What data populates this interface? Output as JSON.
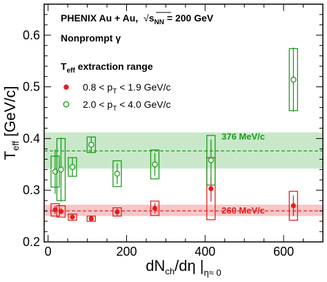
{
  "chart_data": {
    "type": "scatter",
    "xlabel": "dN",
    "xlabel_sub": "ch",
    "xlabel_mid": "/dη |",
    "xlabel_sub2": "η≈ 0",
    "ylabel": "T",
    "ylabel_sub": "eff",
    "ylabel_unit": " [GeV/c]",
    "xlim": [
      -10,
      700
    ],
    "ylim": [
      0.2,
      0.66
    ],
    "x_ticks": [
      0,
      200,
      400,
      600
    ],
    "y_ticks": [
      0.2,
      0.3,
      0.4,
      0.5,
      0.6
    ],
    "annotations": {
      "collab": "PHENIX Au + Au,",
      "energy_sqrt": "√",
      "energy_s": "s",
      "energy_sub": "NN",
      "energy_val": " = 200 GeV",
      "nonprompt": "Nonprompt γ",
      "range_title_T": "T",
      "range_title_sub": "eff",
      "range_title_rest": " extraction range"
    },
    "bands": [
      {
        "name": "376 MeV/c",
        "value": 0.376,
        "low": 0.342,
        "high": 0.412,
        "color": "#1a9c1a",
        "fill": "#c9e8c9"
      },
      {
        "name": "260 MeV/c",
        "value": 0.26,
        "low": 0.25,
        "high": 0.272,
        "color": "#e02020",
        "fill": "#f7c6c6"
      }
    ],
    "series": [
      {
        "name_pre": "0.8 < p",
        "name_sub": "T",
        "name_post": " < 1.9 GeV/c",
        "color": "#e02020",
        "marker": "filled",
        "points": [
          {
            "x": 18,
            "y": 0.262,
            "err": 0.008,
            "syst": 0.012
          },
          {
            "x": 33,
            "y": 0.259,
            "err": 0.006,
            "syst": 0.011
          },
          {
            "x": 62,
            "y": 0.248,
            "err": 0.004,
            "syst": 0.006
          },
          {
            "x": 110,
            "y": 0.245,
            "err": 0.004,
            "syst": 0.005
          },
          {
            "x": 176,
            "y": 0.258,
            "err": 0.007,
            "syst": 0.008
          },
          {
            "x": 272,
            "y": 0.265,
            "err": 0.01,
            "syst": 0.014
          },
          {
            "x": 415,
            "y": 0.303,
            "err": 0.025,
            "syst": 0.06
          },
          {
            "x": 625,
            "y": 0.27,
            "err": 0.02,
            "syst": 0.028
          }
        ]
      },
      {
        "name_pre": "2.0 < p",
        "name_sub": "T",
        "name_post": " < 4.0 GeV/c",
        "color": "#1a9c1a",
        "marker": "open",
        "points": [
          {
            "x": 18,
            "y": 0.336,
            "err": 0.043,
            "syst": 0.03
          },
          {
            "x": 33,
            "y": 0.34,
            "err": 0.062,
            "syst": 0.06
          },
          {
            "x": 62,
            "y": 0.345,
            "err": 0.018,
            "syst": 0.018
          },
          {
            "x": 110,
            "y": 0.388,
            "err": 0.015,
            "syst": 0.015
          },
          {
            "x": 176,
            "y": 0.332,
            "err": 0.02,
            "syst": 0.025
          },
          {
            "x": 272,
            "y": 0.35,
            "err": 0.022,
            "syst": 0.028
          },
          {
            "x": 415,
            "y": 0.358,
            "err": 0.04,
            "syst": 0.048
          },
          {
            "x": 625,
            "y": 0.514,
            "err": 0.062,
            "syst": 0.06
          }
        ]
      }
    ]
  }
}
